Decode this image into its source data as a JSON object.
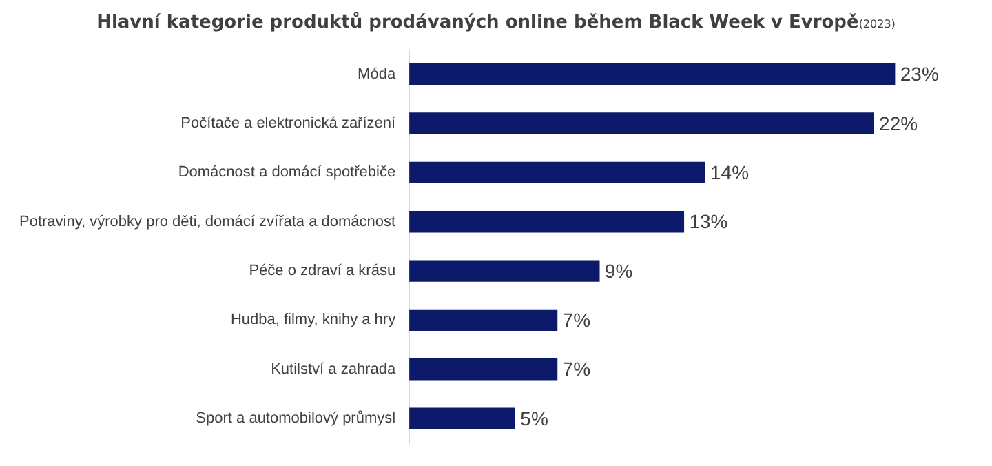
{
  "chart_data": {
    "type": "bar",
    "orientation": "horizontal",
    "title": "Hlavní kategorie produktů prodávaných online během Black Week v Evropě",
    "subtitle": "(2023)",
    "categories": [
      "Móda",
      "Počítače a elektronická zařízení",
      "Domácnost a domácí spotřebiče",
      "Potraviny, výrobky pro děti, domácí zvířata a domácnost",
      "Péče o zdraví a krásu",
      "Hudba, filmy, knihy a hry",
      "Kutilství a zahrada",
      "Sport a automobilový průmysl"
    ],
    "values": [
      23,
      22,
      14,
      13,
      9,
      7,
      7,
      5
    ],
    "value_labels": [
      "23%",
      "22%",
      "14%",
      "13%",
      "9%",
      "7%",
      "7%",
      "5%"
    ],
    "color": "#0d1a6b"
  }
}
